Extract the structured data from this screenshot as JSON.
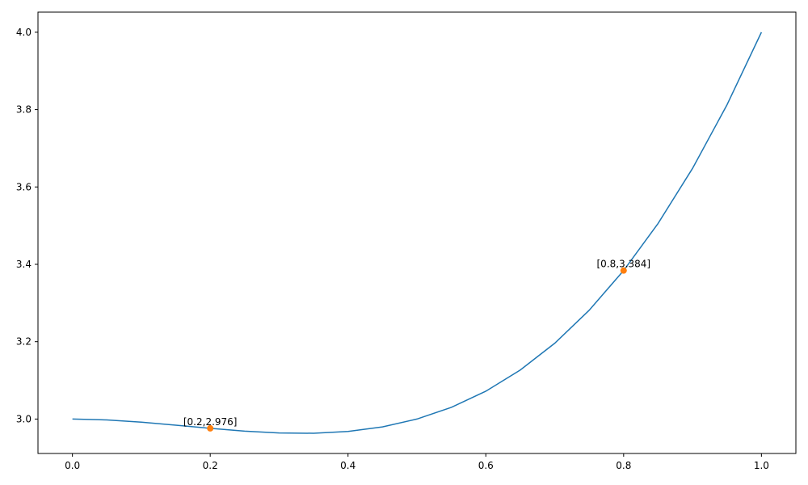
{
  "chart_data": {
    "type": "line",
    "x": [
      0,
      0.05,
      0.1,
      0.15,
      0.2,
      0.25,
      0.3,
      0.35,
      0.4,
      0.45,
      0.5,
      0.55,
      0.6,
      0.65,
      0.7,
      0.75,
      0.8,
      0.85,
      0.9,
      0.95,
      1
    ],
    "series": [
      {
        "mode": "line",
        "color": "#1f77b4",
        "values": [
          3,
          2.99775,
          2.992,
          2.98425,
          2.976,
          2.96875,
          2.964,
          2.96325,
          2.968,
          2.97975,
          3,
          3.03025,
          3.072,
          3.12675,
          3.196,
          3.28125,
          3.384,
          3.50575,
          3.648,
          3.81225,
          4
        ]
      },
      {
        "mode": "markers",
        "color": "#ff7f0e",
        "x": [
          0.2,
          0.8
        ],
        "values": [
          2.976,
          3.384
        ],
        "value_labels": [
          "[0.2,2.976]",
          "[0.8,3.384]"
        ]
      }
    ],
    "xlim": [
      -0.05,
      1.05
    ],
    "ylim": [
      2.911,
      4.052
    ],
    "xticks": [
      {
        "value": 0,
        "label": "0.0"
      },
      0.2,
      0.4,
      0.6,
      0.8,
      {
        "value": 1,
        "label": "1.0"
      }
    ],
    "yticks": [
      {
        "value": 3,
        "label": "3.0"
      },
      3.2,
      3.4,
      3.6,
      3.8,
      {
        "value": 4,
        "label": "4.0"
      }
    ],
    "grid": false
  }
}
